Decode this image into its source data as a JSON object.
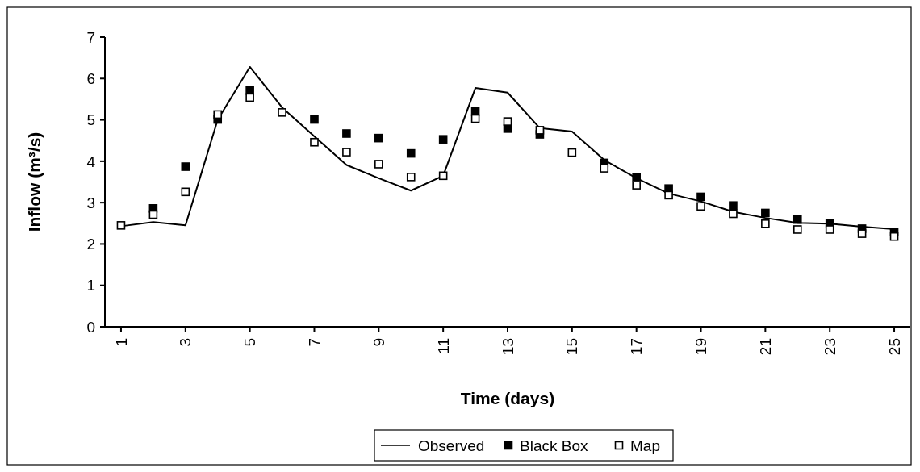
{
  "chart_data": {
    "type": "line",
    "xlabel": "Time (days)",
    "ylabel": "Inflow (m³/s)",
    "x": [
      1,
      2,
      3,
      4,
      5,
      6,
      7,
      8,
      9,
      10,
      11,
      12,
      13,
      14,
      15,
      16,
      17,
      18,
      19,
      20,
      21,
      22,
      23,
      24,
      25
    ],
    "xlim": [
      0.5,
      25.5
    ],
    "xticks": [
      1,
      3,
      5,
      7,
      9,
      11,
      13,
      15,
      17,
      19,
      21,
      23,
      25
    ],
    "ylim": [
      0,
      7
    ],
    "yticks": [
      0,
      1,
      2,
      3,
      4,
      5,
      6,
      7
    ],
    "legend": "bottom",
    "grid": false,
    "series": [
      {
        "name": "Observed",
        "color": "#000000",
        "marker": "none",
        "values": [
          2.43,
          2.53,
          2.45,
          5.0,
          6.28,
          5.3,
          4.6,
          3.91,
          3.59,
          3.29,
          3.65,
          5.77,
          5.66,
          4.8,
          4.72,
          4.03,
          3.59,
          3.22,
          3.03,
          2.78,
          2.63,
          2.51,
          2.49,
          2.42,
          2.36
        ]
      },
      {
        "name": "Black Box",
        "type": "scatter",
        "color": "#000000",
        "marker": "square",
        "values": [
          null,
          2.86,
          3.87,
          5.01,
          5.71,
          null,
          5.01,
          4.67,
          4.56,
          4.19,
          4.53,
          5.2,
          4.79,
          4.65,
          null,
          3.96,
          3.62,
          3.34,
          3.14,
          2.93,
          2.75,
          2.59,
          2.49,
          2.37,
          2.29
        ]
      },
      {
        "name": "Map",
        "type": "scatter",
        "color": "#000000",
        "marker": "square",
        "values": [
          2.45,
          2.71,
          3.26,
          5.13,
          5.54,
          5.18,
          4.46,
          4.22,
          3.93,
          3.62,
          3.65,
          5.03,
          4.96,
          4.75,
          4.21,
          3.83,
          3.42,
          3.18,
          2.91,
          2.73,
          2.49,
          2.35,
          2.35,
          2.25,
          2.18
        ]
      }
    ]
  }
}
